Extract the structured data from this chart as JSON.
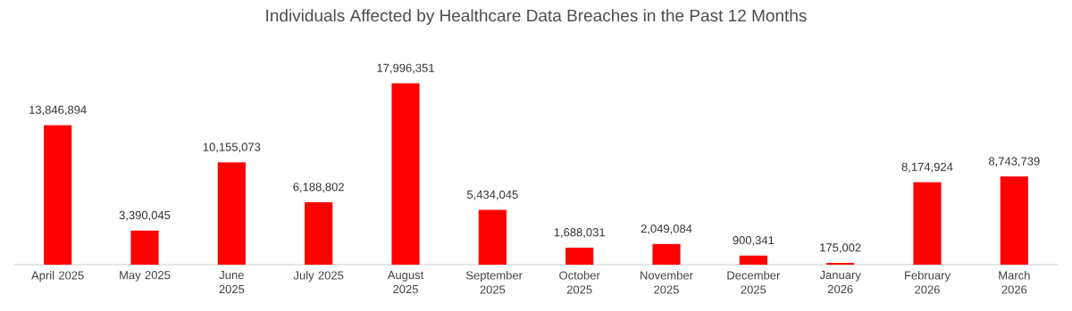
{
  "chart_data": {
    "type": "bar",
    "title": "Individuals Affected by Healthcare Data Breaches in the Past 12 Months",
    "categories": [
      "April 2025",
      "May 2025",
      "June 2025",
      "July 2025",
      "August 2025",
      "September 2025",
      "October 2025",
      "November 2025",
      "December 2025",
      "January 2026",
      "February 2026",
      "March 2026"
    ],
    "values": [
      13846894,
      3390045,
      10155073,
      6188802,
      17996351,
      5434045,
      1688031,
      2049084,
      900341,
      175002,
      8174924,
      8743739
    ],
    "value_labels": [
      "13,846,894",
      "3,390,045",
      "10,155,073",
      "6,188,802",
      "17,996,351",
      "5,434,045",
      "1,688,031",
      "2,049,084",
      "900,341",
      "175,002",
      "8,174,924",
      "8,743,739"
    ],
    "color": "#ff0000"
  }
}
